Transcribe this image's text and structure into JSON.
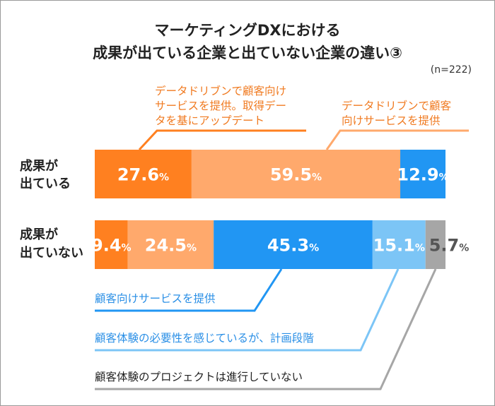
{
  "chart_data": {
    "type": "bar",
    "orientation": "horizontal",
    "stacked": true,
    "title_lines": [
      "マーケティングDXにおける",
      "成果が出ている企業と出ていない企業の違い③"
    ],
    "note": "(n=222)",
    "unit": "%",
    "xlim": [
      0,
      100
    ],
    "grid": false,
    "categories": [
      {
        "lines": [
          "成果が",
          "出ている"
        ]
      },
      {
        "lines": [
          "成果が",
          "出ていない"
        ]
      }
    ],
    "series": [
      {
        "name": "データドリブンで顧客向けサービスを提供。取得データを基にアップデート",
        "name_lines": [
          "データドリブンで顧客向け",
          "サービスを提供。取得デー",
          "タを基にアップデート"
        ],
        "color": "#ff8020",
        "values": [
          27.6,
          9.4
        ]
      },
      {
        "name": "データドリブンで顧客向けサービスを提供",
        "name_lines": [
          "データドリブンで顧客",
          "向けサービスを提供"
        ],
        "color": "#ffa96c",
        "values": [
          59.5,
          24.5
        ]
      },
      {
        "name": "顧客向けサービスを提供",
        "name_lines": [
          "顧客向けサービスを提供"
        ],
        "color": "#2196f3",
        "values": [
          12.9,
          45.3
        ]
      },
      {
        "name": "顧客体験の必要性を感じているが、計画段階",
        "name_lines": [
          "顧客体験の必要性を感じているが、計画段階"
        ],
        "color": "#7cc5f6",
        "values": [
          null,
          15.1
        ]
      },
      {
        "name": "顧客体験のプロジェクトは進行していない",
        "name_lines": [
          "顧客体験のプロジェクトは進行していない"
        ],
        "color": "#a6a6a6",
        "values": [
          null,
          5.7
        ]
      }
    ],
    "legend_text_colors": [
      "#f07a20",
      "#f07a20",
      "#2a8fe6",
      "#2a8fe6",
      "#222222"
    ],
    "legend_placement": "callouts"
  }
}
